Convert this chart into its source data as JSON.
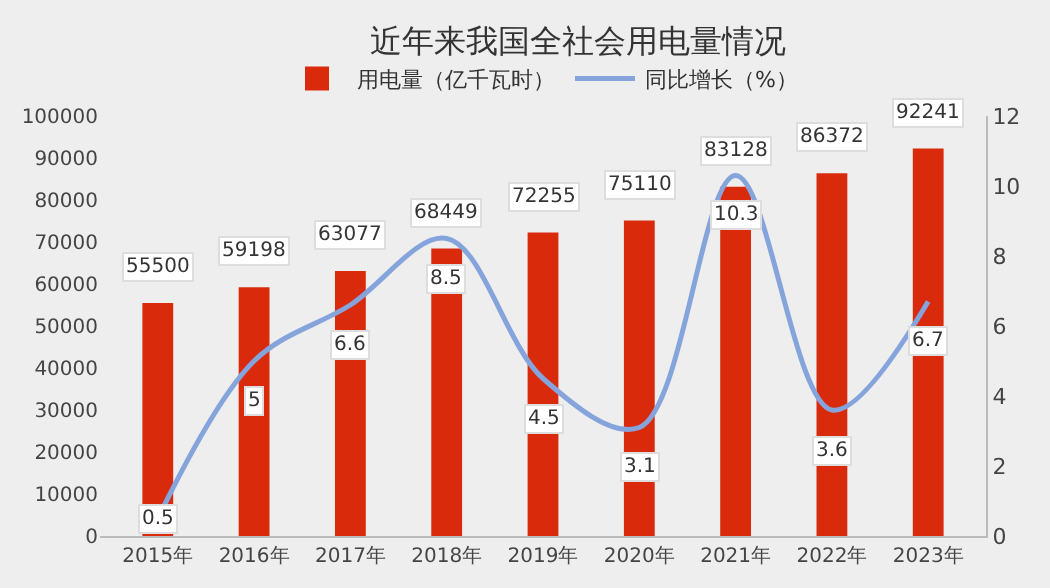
{
  "chart_data": {
    "type": "bar",
    "title": "近年来我国全社会用电量情况",
    "categories": [
      "2015年",
      "2016年",
      "2017年",
      "2018年",
      "2019年",
      "2020年",
      "2021年",
      "2022年",
      "2023年"
    ],
    "series": [
      {
        "name": "用电量（亿千瓦时）",
        "color": "#d92b0c",
        "values": [
          55500,
          59198,
          63077,
          68449,
          72255,
          75110,
          83128,
          86372,
          92241
        ]
      },
      {
        "name": "同比增长（%）",
        "type": "line",
        "axis": "y2",
        "color": "#86a4dc",
        "values": [
          0.5,
          5,
          6.6,
          8.5,
          4.5,
          3.1,
          10.3,
          3.6,
          6.7
        ]
      }
    ],
    "ylim": [
      0,
      100000
    ],
    "yticks": [
      0,
      10000,
      20000,
      30000,
      40000,
      50000,
      60000,
      70000,
      80000,
      90000,
      100000
    ],
    "y2lim": [
      0,
      12
    ],
    "y2ticks": [
      0,
      2,
      4,
      6,
      8,
      10,
      12
    ],
    "data_labels": true,
    "legend": "top",
    "grid": false,
    "marker": "none"
  }
}
